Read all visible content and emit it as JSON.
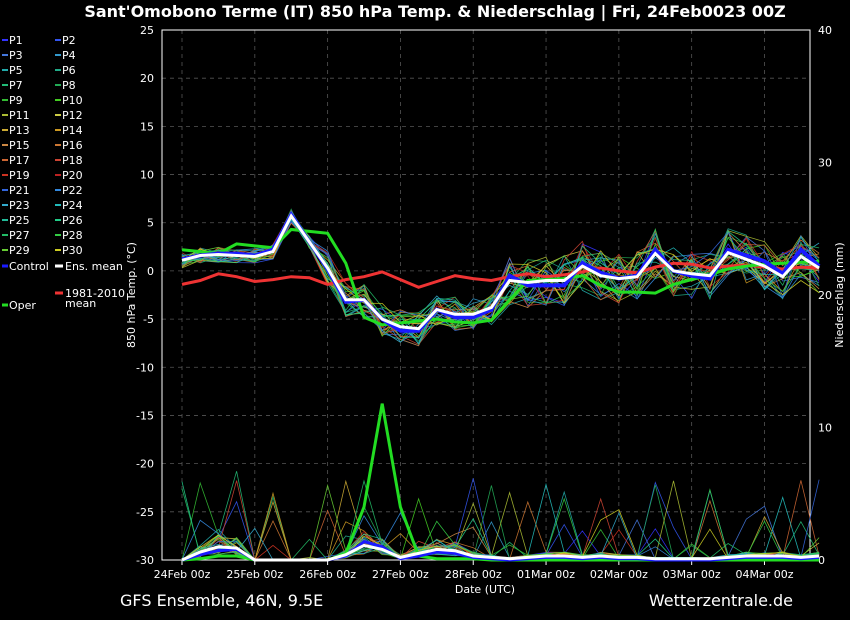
{
  "chart_data": {
    "type": "line",
    "title": "Sant'Omobono Terme  (IT)  850 hPa Temp. & Niederschlag | Fri, 24Feb0023 00Z",
    "xlabel": "Date (UTC)",
    "ylabel": "850 hPa Temp. (°C)",
    "y2label": "Niederschlag (mm)",
    "ylim": [
      -30,
      25
    ],
    "y2lim": [
      0,
      40
    ],
    "yticks": [
      25,
      20,
      15,
      10,
      5,
      0,
      -5,
      -10,
      -15,
      -20,
      -25,
      -30
    ],
    "y2ticks": [
      40,
      30,
      20,
      10,
      0
    ],
    "x_range": [
      "24Feb 00z",
      "04Mar 18z"
    ],
    "x_tick_labels": [
      "24Feb 00z",
      "25Feb 00z",
      "26Feb 00z",
      "27Feb 00z",
      "28Feb 00z",
      "01Mar 00z",
      "02Mar 00z",
      "03Mar 00z",
      "04Mar 00z"
    ],
    "grid": true,
    "legend_position": "left",
    "footer_left": "GFS Ensemble, 46N, 9.5E",
    "footer_right": "Wetterzentrale.de",
    "legend": [
      {
        "label": "P1",
        "color": "#3333ff"
      },
      {
        "label": "P2",
        "color": "#3355ee"
      },
      {
        "label": "P3",
        "color": "#4477dd"
      },
      {
        "label": "P4",
        "color": "#3399cc"
      },
      {
        "label": "P5",
        "color": "#22aaaa"
      },
      {
        "label": "P6",
        "color": "#22aa88"
      },
      {
        "label": "P7",
        "color": "#22bb77"
      },
      {
        "label": "P8",
        "color": "#22aa55"
      },
      {
        "label": "P9",
        "color": "#33bb33"
      },
      {
        "label": "P10",
        "color": "#44cc22"
      },
      {
        "label": "P11",
        "color": "#aabb33"
      },
      {
        "label": "P12",
        "color": "#cccc44"
      },
      {
        "label": "P13",
        "color": "#ccaa33"
      },
      {
        "label": "P14",
        "color": "#cc9922"
      },
      {
        "label": "P15",
        "color": "#cc8844"
      },
      {
        "label": "P16",
        "color": "#cc7733"
      },
      {
        "label": "P17",
        "color": "#cc6633"
      },
      {
        "label": "P18",
        "color": "#cc4433"
      },
      {
        "label": "P19",
        "color": "#cc3322"
      },
      {
        "label": "P20",
        "color": "#bb2222"
      },
      {
        "label": "P21",
        "color": "#3366dd"
      },
      {
        "label": "P22",
        "color": "#3388dd"
      },
      {
        "label": "P23",
        "color": "#33aacc"
      },
      {
        "label": "P24",
        "color": "#22bbbb"
      },
      {
        "label": "P25",
        "color": "#22bb99"
      },
      {
        "label": "P26",
        "color": "#22cc88"
      },
      {
        "label": "P27",
        "color": "#22bb66"
      },
      {
        "label": "P28",
        "color": "#33cc44"
      },
      {
        "label": "P29",
        "color": "#66cc33"
      },
      {
        "label": "P30",
        "color": "#cccc22"
      },
      {
        "label": "Control",
        "color": "#1a1aff"
      },
      {
        "label": "Ens. mean",
        "color": "#ffffff"
      },
      {
        "label": "Oper",
        "color": "#22dd22"
      },
      {
        "label": "1981-2010\nmean",
        "color": "#ee3333"
      }
    ],
    "temperature": {
      "x_step_hours": 6,
      "control": [
        1.2,
        1.6,
        1.8,
        1.8,
        1.6,
        2.2,
        5.8,
        3,
        0.2,
        -3.2,
        -3,
        -5,
        -6.2,
        -6.2,
        -4,
        -4.8,
        -4.8,
        -4,
        -0.5,
        -1.5,
        -1.5,
        -1.5,
        0.8,
        -0.2,
        -0.8,
        -0.5,
        2.2,
        0,
        -0.5,
        -0.8,
        2.2,
        1.6,
        1,
        -0.3,
        2.2,
        0.5
      ],
      "ens_mean": [
        1.1,
        1.6,
        1.7,
        1.6,
        1.5,
        2,
        5.7,
        3,
        0.3,
        -3,
        -3,
        -5,
        -5.8,
        -6,
        -4,
        -4.5,
        -4.5,
        -3.8,
        -1,
        -1.2,
        -1,
        -1,
        0.5,
        -0.5,
        -0.8,
        -0.6,
        1.8,
        0,
        -0.3,
        -0.5,
        1.9,
        1.2,
        0.5,
        -0.6,
        1.5,
        0.3
      ],
      "oper": [
        2.2,
        2,
        1.8,
        2.8,
        2.6,
        2.4,
        4.3,
        4.1,
        3.9,
        0.8,
        -4.8,
        -5.6,
        -5.4,
        -5.2,
        -5,
        -5.3,
        -5.4,
        -5.1,
        -3,
        -1,
        -0.9,
        -0.8,
        -0.5,
        -1.5,
        -2.2,
        -2.2,
        -2.3,
        -1.4,
        -0.9,
        -0.4,
        0.2,
        0.5,
        0.7,
        0.8,
        0.9,
        1
      ],
      "climate_mean": [
        -1.4,
        -1,
        -0.3,
        -0.6,
        -1.1,
        -0.9,
        -0.6,
        -0.7,
        -1.4,
        -0.9,
        -0.6,
        -0.1,
        -0.9,
        -1.7,
        -1.1,
        -0.5,
        -0.8,
        -1,
        -0.6,
        -0.3,
        -0.6,
        -0.4,
        -0.1,
        0.3,
        0,
        -0.2,
        0.4,
        0.8,
        0.7,
        0.3,
        0.5,
        0.6,
        0.4,
        0.2,
        0.4,
        0.3
      ]
    },
    "precipitation": {
      "x_step_hours": 6,
      "ens_mean": [
        0,
        0.6,
        1,
        0.9,
        0,
        0,
        0,
        0,
        0,
        0.4,
        1.1,
        0.8,
        0.2,
        0.5,
        0.8,
        0.7,
        0.3,
        0.2,
        0.1,
        0.2,
        0.3,
        0.3,
        0.2,
        0.3,
        0.2,
        0.2,
        0.1,
        0.1,
        0.1,
        0.1,
        0.2,
        0.3,
        0.3,
        0.3,
        0.2,
        0.3
      ],
      "oper": [
        0,
        0.1,
        0.3,
        0.3,
        0,
        0,
        0,
        0,
        0,
        0.5,
        4,
        11.8,
        4,
        0.3,
        0.1,
        0.1,
        0.1,
        0,
        0,
        0,
        0,
        0,
        0,
        0,
        0,
        0,
        0,
        0,
        0,
        0,
        0,
        0,
        0,
        0,
        0,
        0
      ],
      "control": [
        0,
        0.4,
        0.7,
        0.8,
        0,
        0,
        0,
        0,
        0,
        0.3,
        1.4,
        1,
        0.1,
        0.3,
        0.6,
        0.5,
        0.2,
        0.1,
        0,
        0.1,
        0.2,
        0.2,
        0.1,
        0.2,
        0.1,
        0.1,
        0,
        0,
        0,
        0,
        0.1,
        0.2,
        0.2,
        0.2,
        0.1,
        0.2
      ]
    }
  }
}
